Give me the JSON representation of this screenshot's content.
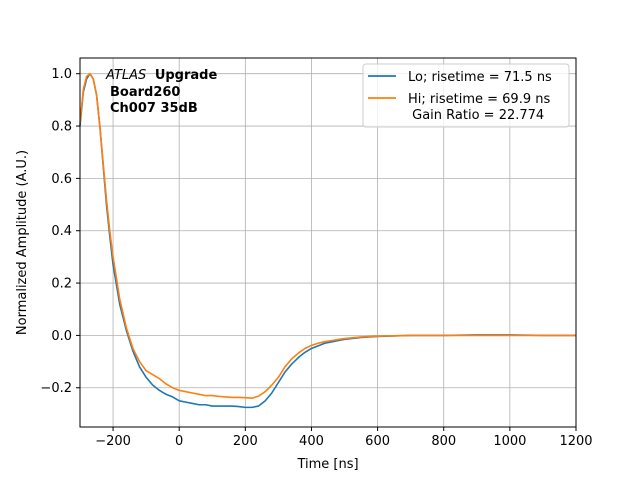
{
  "chart_data": {
    "type": "line",
    "title": "",
    "xlabel": "Time [ns]",
    "ylabel": "Normalized Amplitude (A.U.)",
    "xlim": [
      -300,
      1200
    ],
    "ylim": [
      -0.35,
      1.06
    ],
    "xticks": [
      -200,
      0,
      200,
      400,
      600,
      800,
      1000,
      1200
    ],
    "yticks": [
      -0.2,
      0.0,
      0.2,
      0.4,
      0.6,
      0.8,
      1.0
    ],
    "xtick_labels": [
      "−200",
      "0",
      "200",
      "400",
      "600",
      "800",
      "1000",
      "1200"
    ],
    "ytick_labels": [
      "−0.2",
      "0.0",
      "0.2",
      "0.4",
      "0.6",
      "0.8",
      "1.0"
    ],
    "grid": true,
    "legend_position": "top-right",
    "annotation": {
      "atlas": "ATLAS",
      "upgrade": "Upgrade",
      "line2": "Board260",
      "line3": "Ch007 35dB"
    },
    "series": [
      {
        "name": "Lo; risetime = 71.5 ns",
        "color": "#1f77b4",
        "x": [
          -300,
          -290,
          -280,
          -270,
          -260,
          -250,
          -240,
          -230,
          -220,
          -210,
          -200,
          -180,
          -160,
          -140,
          -120,
          -100,
          -80,
          -60,
          -40,
          -20,
          0,
          20,
          40,
          60,
          80,
          100,
          120,
          140,
          160,
          180,
          200,
          220,
          240,
          260,
          280,
          300,
          320,
          340,
          360,
          380,
          400,
          420,
          440,
          460,
          480,
          500,
          550,
          600,
          700,
          800,
          900,
          1000,
          1100,
          1200
        ],
        "y": [
          0.8,
          0.93,
          0.98,
          1.0,
          0.98,
          0.92,
          0.8,
          0.65,
          0.5,
          0.38,
          0.27,
          0.12,
          0.02,
          -0.06,
          -0.12,
          -0.16,
          -0.19,
          -0.21,
          -0.225,
          -0.235,
          -0.25,
          -0.255,
          -0.26,
          -0.265,
          -0.265,
          -0.27,
          -0.27,
          -0.27,
          -0.27,
          -0.272,
          -0.275,
          -0.275,
          -0.27,
          -0.25,
          -0.22,
          -0.18,
          -0.14,
          -0.11,
          -0.085,
          -0.065,
          -0.05,
          -0.04,
          -0.03,
          -0.025,
          -0.02,
          -0.015,
          -0.008,
          -0.004,
          0.0,
          0.0,
          0.002,
          0.002,
          0.0,
          0.0
        ]
      },
      {
        "name": "Hi; risetime = 69.9 ns\n Gain Ratio = 22.774",
        "color": "#ff7f0e",
        "x": [
          -300,
          -290,
          -280,
          -270,
          -260,
          -250,
          -240,
          -230,
          -220,
          -210,
          -200,
          -180,
          -160,
          -140,
          -120,
          -100,
          -80,
          -60,
          -40,
          -20,
          0,
          20,
          40,
          60,
          80,
          100,
          120,
          140,
          160,
          180,
          200,
          220,
          240,
          260,
          280,
          300,
          320,
          340,
          360,
          380,
          400,
          420,
          440,
          460,
          480,
          500,
          550,
          600,
          700,
          800,
          900,
          1000,
          1100,
          1200
        ],
        "y": [
          0.81,
          0.94,
          0.99,
          1.0,
          0.98,
          0.92,
          0.8,
          0.66,
          0.52,
          0.4,
          0.3,
          0.14,
          0.03,
          -0.05,
          -0.1,
          -0.135,
          -0.15,
          -0.165,
          -0.185,
          -0.2,
          -0.21,
          -0.215,
          -0.22,
          -0.225,
          -0.23,
          -0.23,
          -0.233,
          -0.235,
          -0.237,
          -0.237,
          -0.238,
          -0.24,
          -0.232,
          -0.215,
          -0.19,
          -0.16,
          -0.12,
          -0.09,
          -0.068,
          -0.05,
          -0.038,
          -0.03,
          -0.024,
          -0.02,
          -0.016,
          -0.012,
          -0.006,
          -0.003,
          0.0,
          0.0,
          0.0,
          0.0,
          0.0,
          0.0
        ]
      }
    ]
  }
}
